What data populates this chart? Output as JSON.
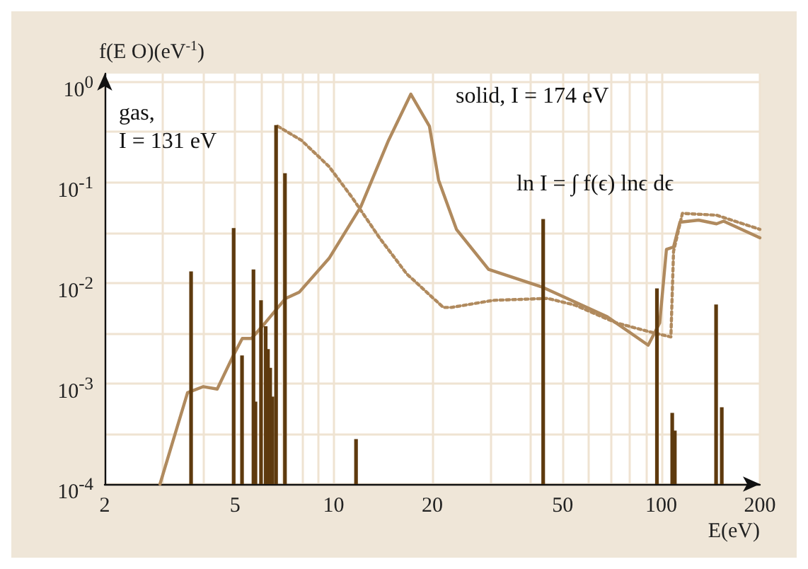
{
  "chart_data": {
    "type": "line",
    "xlabel": "E(eV)",
    "ylabel": "f(E O)(eV$^{-1}$)",
    "log": "xy",
    "grid": true,
    "legend": false,
    "marker": "none",
    "xlim": [
      2,
      200
    ],
    "xticks": [
      2,
      {
        "value": 3,
        "label": null
      },
      {
        "value": 4,
        "label": null
      },
      5,
      {
        "value": 6,
        "label": null
      },
      {
        "value": 7,
        "label": null
      },
      {
        "value": 8,
        "label": null
      },
      {
        "value": 9,
        "label": null
      },
      10,
      20,
      {
        "value": 30,
        "label": null
      },
      {
        "value": 40,
        "label": null
      },
      50,
      {
        "value": 60,
        "label": null
      },
      {
        "value": 70,
        "label": null
      },
      {
        "value": 80,
        "label": null
      },
      {
        "value": 90,
        "label": null
      },
      100,
      200
    ],
    "ylim": [
      0.0001,
      1.2
    ],
    "yticks": [
      {
        "value": 0.0001,
        "label": "10$^{-4}$"
      },
      {
        "value": 0.000316,
        "label": null
      },
      {
        "value": 0.001,
        "label": "10$^{-3}$"
      },
      {
        "value": 0.00316,
        "label": null
      },
      {
        "value": 0.01,
        "label": "10$^{-2}$"
      },
      {
        "value": 0.0316,
        "label": null
      },
      {
        "value": 0.1,
        "label": "10$^{-1}$"
      },
      {
        "value": 0.316,
        "label": null
      },
      {
        "value": 1,
        "label": "10$^{0}$"
      }
    ],
    "series": [
      {
        "type": "bar",
        "color": "#5e3a0e",
        "x": [
          3.67,
          4.95,
          5.25,
          5.69,
          5.77,
          6.0,
          6.2,
          6.3,
          6.4,
          6.5,
          6.67,
          7.1,
          11.7,
          43.6,
          97,
          108,
          110,
          147,
          153
        ],
        "values": [
          0.013,
          0.035,
          0.0019,
          0.0136,
          0.00066,
          0.0067,
          0.0037,
          0.0022,
          0.00143,
          0.00074,
          0.37,
          0.123,
          0.00028,
          0.043,
          0.0088,
          0.00051,
          0.00034,
          0.0061,
          0.00058
        ]
      },
      {
        "color": "#b08a5e",
        "line_style": "dotted",
        "x": [
          6.75,
          7.98,
          9.68,
          11.4,
          13.8,
          16.7,
          21.6,
          22.9,
          30.7,
          45,
          54.6,
          72.9,
          94.2,
          107,
          109,
          116,
          147.5,
          200
        ],
        "values": [
          0.36,
          0.26,
          0.143,
          0.07,
          0.028,
          0.0123,
          0.0057,
          0.0057,
          0.0067,
          0.007,
          0.006,
          0.004,
          0.0032,
          0.0029,
          0.0205,
          0.049,
          0.047,
          0.034
        ]
      },
      {
        "color": "#b08a5e",
        "line_style": "solid",
        "x": [
          2.95,
          3.58,
          4.0,
          4.41,
          4.94,
          5.26,
          5.61,
          6.18,
          7.13,
          7.86,
          9.68,
          12.1,
          14.7,
          17.2,
          19.6,
          20.9,
          23.7,
          29.7,
          43.6,
          68.4,
          91.2,
          98.9,
          103.7,
          109,
          114,
          130,
          147.5,
          155,
          200
        ],
        "values": [
          0.0001,
          0.00081,
          0.00093,
          0.00088,
          0.0019,
          0.0028,
          0.0028,
          0.004,
          0.007,
          0.0081,
          0.0175,
          0.057,
          0.26,
          0.75,
          0.36,
          0.105,
          0.034,
          0.0136,
          0.009,
          0.0046,
          0.0024,
          0.004,
          0.0215,
          0.0227,
          0.04,
          0.042,
          0.0386,
          0.041,
          0.028
        ]
      }
    ],
    "annotations": [
      "gas,\nI = 131 eV",
      "solid, I = 174 eV",
      "ln I = ∫ f(ϵ) lnϵ dϵ"
    ]
  }
}
